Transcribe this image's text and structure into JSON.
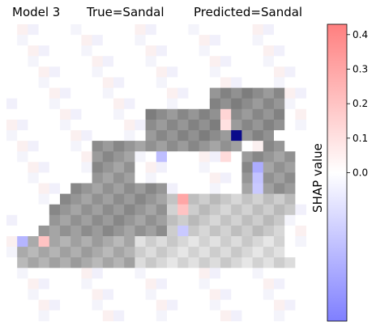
{
  "chart_data": {
    "type": "heatmap",
    "title": {
      "model": "Model 3",
      "true_label": "True=Sandal",
      "predicted_label": "Predicted=Sandal"
    },
    "grid_size": [
      28,
      28
    ],
    "colorbar": {
      "label": "SHAP value",
      "range": [
        -0.43,
        0.43
      ],
      "ticks": [
        0.0,
        0.1,
        0.2,
        0.3,
        0.4
      ],
      "tick_labels": [
        "0.0",
        "0.1",
        "0.2",
        "0.3",
        "0.4"
      ],
      "colors": {
        "low": "#7f7fff",
        "mid": "#ffffff",
        "high": "#ff7f7f"
      }
    },
    "notable_cells": [
      {
        "row": 10,
        "col": 21,
        "value": -0.42
      },
      {
        "row": 12,
        "col": 14,
        "value": -0.22
      },
      {
        "row": 13,
        "col": 23,
        "value": -0.28
      },
      {
        "row": 16,
        "col": 16,
        "value": 0.3
      },
      {
        "row": 9,
        "col": 20,
        "value": 0.1
      },
      {
        "row": 20,
        "col": 1,
        "value": -0.25
      },
      {
        "row": 20,
        "col": 3,
        "value": 0.2
      },
      {
        "row": 14,
        "col": 23,
        "value": -0.2
      },
      {
        "row": 15,
        "col": 23,
        "value": -0.18
      },
      {
        "row": 19,
        "col": 16,
        "value": -0.18
      },
      {
        "row": 17,
        "col": 16,
        "value": 0.2
      },
      {
        "row": 12,
        "col": 20,
        "value": 0.12
      },
      {
        "row": 8,
        "col": 20,
        "value": 0.14
      }
    ]
  }
}
